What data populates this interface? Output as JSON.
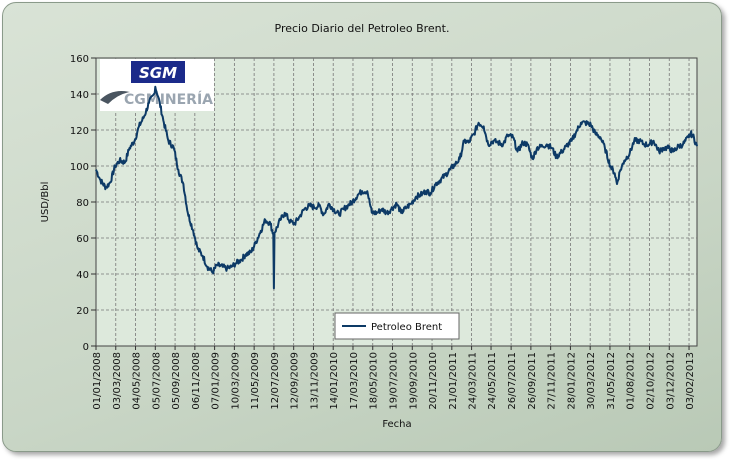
{
  "chart_data": {
    "type": "line",
    "title": "Precio Diario del Petroleo Brent.",
    "xlabel": "Fecha",
    "ylabel": "USD/Bbl",
    "ylim": [
      0,
      160
    ],
    "yticks": [
      0,
      20,
      40,
      60,
      80,
      100,
      120,
      140,
      160
    ],
    "grid": true,
    "legend_position": "bottom-center",
    "logo_text": [
      "SGM",
      "CGMINERÍA"
    ],
    "xlim": [
      "2008-01-01",
      "2013-02-28"
    ],
    "x_tick_labels": [
      "01/01/2008",
      "03/03/2008",
      "04/05/2008",
      "05/07/2008",
      "05/09/2008",
      "06/11/2008",
      "07/01/2009",
      "10/03/2009",
      "11/05/2009",
      "12/07/2009",
      "12/09/2009",
      "13/11/2009",
      "14/01/2010",
      "17/03/2010",
      "18/05/2010",
      "19/07/2010",
      "19/09/2010",
      "20/11/2010",
      "21/01/2011",
      "24/03/2011",
      "24/05/2011",
      "26/07/2011",
      "26/09/2011",
      "27/11/2011",
      "28/01/2012",
      "30/03/2012",
      "31/05/2012",
      "01/08/2012",
      "02/10/2012",
      "03/12/2012",
      "03/02/2013"
    ],
    "series": [
      {
        "name": "Petroleo Brent",
        "color": "#0d3a66",
        "points": [
          [
            "2008-01-01",
            98
          ],
          [
            "2008-01-15",
            92
          ],
          [
            "2008-02-01",
            88
          ],
          [
            "2008-02-15",
            91
          ],
          [
            "2008-03-01",
            100
          ],
          [
            "2008-03-15",
            103
          ],
          [
            "2008-04-01",
            102
          ],
          [
            "2008-04-15",
            110
          ],
          [
            "2008-05-01",
            114
          ],
          [
            "2008-05-15",
            122
          ],
          [
            "2008-06-01",
            128
          ],
          [
            "2008-06-15",
            135
          ],
          [
            "2008-07-01",
            140
          ],
          [
            "2008-07-05",
            144
          ],
          [
            "2008-07-15",
            138
          ],
          [
            "2008-08-01",
            124
          ],
          [
            "2008-08-15",
            114
          ],
          [
            "2008-09-01",
            110
          ],
          [
            "2008-09-15",
            98
          ],
          [
            "2008-10-01",
            90
          ],
          [
            "2008-10-15",
            74
          ],
          [
            "2008-11-01",
            64
          ],
          [
            "2008-11-15",
            54
          ],
          [
            "2008-12-01",
            50
          ],
          [
            "2008-12-15",
            44
          ],
          [
            "2009-01-01",
            41
          ],
          [
            "2009-01-15",
            45
          ],
          [
            "2009-02-01",
            44
          ],
          [
            "2009-02-15",
            43
          ],
          [
            "2009-03-01",
            44
          ],
          [
            "2009-03-15",
            46
          ],
          [
            "2009-04-01",
            48
          ],
          [
            "2009-04-15",
            51
          ],
          [
            "2009-05-01",
            52
          ],
          [
            "2009-05-15",
            57
          ],
          [
            "2009-06-01",
            64
          ],
          [
            "2009-06-15",
            70
          ],
          [
            "2009-07-01",
            68
          ],
          [
            "2009-07-10",
            62
          ],
          [
            "2009-07-12",
            32
          ],
          [
            "2009-07-14",
            63
          ],
          [
            "2009-08-01",
            70
          ],
          [
            "2009-08-15",
            74
          ],
          [
            "2009-09-01",
            69
          ],
          [
            "2009-09-15",
            68
          ],
          [
            "2009-10-01",
            72
          ],
          [
            "2009-10-15",
            76
          ],
          [
            "2009-11-01",
            78
          ],
          [
            "2009-11-15",
            77
          ],
          [
            "2009-12-01",
            78
          ],
          [
            "2009-12-15",
            73
          ],
          [
            "2010-01-01",
            79
          ],
          [
            "2010-01-15",
            76
          ],
          [
            "2010-02-01",
            73
          ],
          [
            "2010-02-15",
            76
          ],
          [
            "2010-03-01",
            78
          ],
          [
            "2010-03-15",
            80
          ],
          [
            "2010-04-01",
            84
          ],
          [
            "2010-04-15",
            86
          ],
          [
            "2010-05-01",
            86
          ],
          [
            "2010-05-15",
            74
          ],
          [
            "2010-06-01",
            74
          ],
          [
            "2010-06-15",
            76
          ],
          [
            "2010-07-01",
            74
          ],
          [
            "2010-07-15",
            76
          ],
          [
            "2010-08-01",
            79
          ],
          [
            "2010-08-15",
            74
          ],
          [
            "2010-09-01",
            77
          ],
          [
            "2010-09-15",
            79
          ],
          [
            "2010-10-01",
            83
          ],
          [
            "2010-10-15",
            84
          ],
          [
            "2010-11-01",
            86
          ],
          [
            "2010-11-15",
            85
          ],
          [
            "2010-12-01",
            90
          ],
          [
            "2010-12-15",
            92
          ],
          [
            "2011-01-01",
            95
          ],
          [
            "2011-01-15",
            98
          ],
          [
            "2011-02-01",
            101
          ],
          [
            "2011-02-15",
            104
          ],
          [
            "2011-03-01",
            114
          ],
          [
            "2011-03-15",
            113
          ],
          [
            "2011-04-01",
            118
          ],
          [
            "2011-04-15",
            124
          ],
          [
            "2011-05-01",
            122
          ],
          [
            "2011-05-15",
            112
          ],
          [
            "2011-06-01",
            114
          ],
          [
            "2011-06-15",
            113
          ],
          [
            "2011-07-01",
            112
          ],
          [
            "2011-07-15",
            117
          ],
          [
            "2011-08-01",
            116
          ],
          [
            "2011-08-15",
            108
          ],
          [
            "2011-09-01",
            113
          ],
          [
            "2011-09-15",
            112
          ],
          [
            "2011-10-01",
            104
          ],
          [
            "2011-10-15",
            110
          ],
          [
            "2011-11-01",
            111
          ],
          [
            "2011-11-15",
            112
          ],
          [
            "2011-12-01",
            110
          ],
          [
            "2011-12-15",
            105
          ],
          [
            "2012-01-01",
            108
          ],
          [
            "2012-01-15",
            111
          ],
          [
            "2012-02-01",
            114
          ],
          [
            "2012-02-15",
            119
          ],
          [
            "2012-03-01",
            124
          ],
          [
            "2012-03-15",
            124
          ],
          [
            "2012-04-01",
            123
          ],
          [
            "2012-04-15",
            118
          ],
          [
            "2012-05-01",
            116
          ],
          [
            "2012-05-15",
            110
          ],
          [
            "2012-06-01",
            100
          ],
          [
            "2012-06-15",
            96
          ],
          [
            "2012-06-22",
            90
          ],
          [
            "2012-07-01",
            97
          ],
          [
            "2012-07-15",
            103
          ],
          [
            "2012-08-01",
            107
          ],
          [
            "2012-08-15",
            114
          ],
          [
            "2012-09-01",
            114
          ],
          [
            "2012-09-15",
            112
          ],
          [
            "2012-10-01",
            112
          ],
          [
            "2012-10-15",
            114
          ],
          [
            "2012-11-01",
            108
          ],
          [
            "2012-11-15",
            110
          ],
          [
            "2012-12-01",
            110
          ],
          [
            "2012-12-15",
            108
          ],
          [
            "2013-01-01",
            111
          ],
          [
            "2013-01-15",
            112
          ],
          [
            "2013-02-01",
            116
          ],
          [
            "2013-02-08",
            118
          ],
          [
            "2013-02-15",
            117
          ],
          [
            "2013-02-28",
            111
          ]
        ]
      }
    ]
  }
}
